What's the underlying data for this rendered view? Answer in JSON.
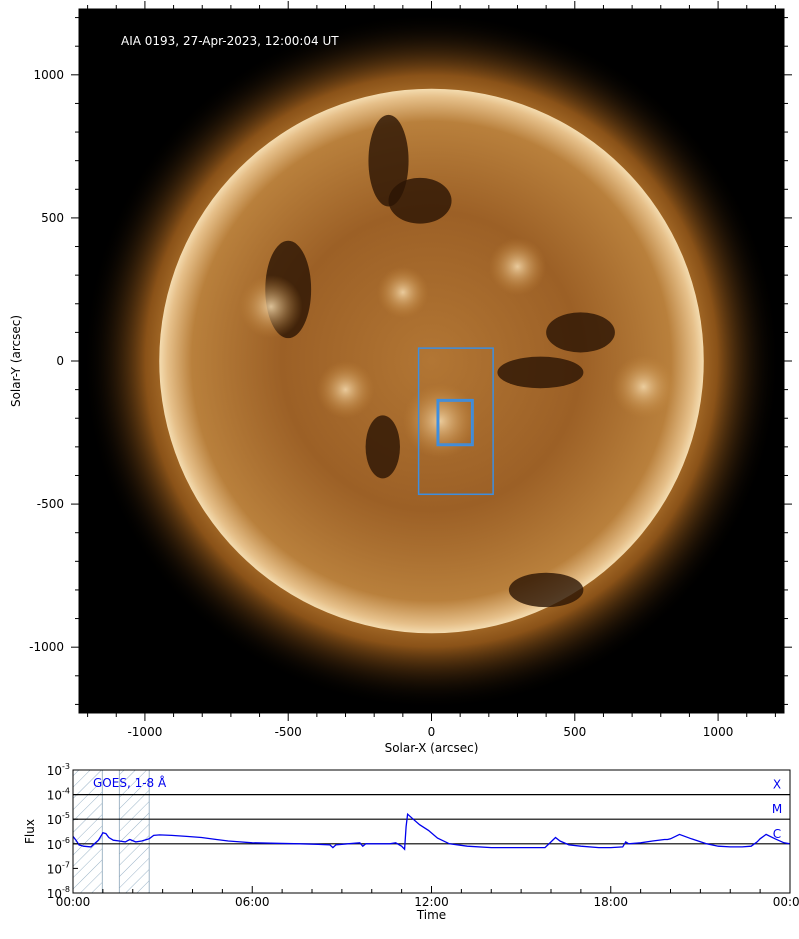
{
  "chart_data": [
    {
      "type": "image",
      "title": "AIA 0193, 27-Apr-2023, 12:00:04 UT",
      "xlabel": "Solar-X (arcsec)",
      "ylabel": "Solar-Y (arcsec)",
      "xlim": [
        -1230,
        1230
      ],
      "ylim": [
        -1230,
        1230
      ],
      "xticks": [
        -1000,
        -500,
        0,
        500,
        1000
      ],
      "yticks": [
        -1000,
        -500,
        0,
        500,
        1000
      ],
      "xtick_labels": [
        "-1000",
        "-500",
        "0",
        "500",
        "1000"
      ],
      "ytick_labels": [
        "-1000",
        "-500",
        "0",
        "500",
        "1000"
      ],
      "disk_radius_arcsec": 950,
      "colormap": "sdoaia193",
      "boxes_arcsec": [
        {
          "x0": -45,
          "x1": 215,
          "y0": -465,
          "y1": 45
        },
        {
          "x0": 20,
          "x1": 145,
          "y0": -295,
          "y1": -135
        },
        {
          "x0": 25,
          "x1": 140,
          "y0": -290,
          "y1": -140
        }
      ],
      "box_color": "#3d8ee0"
    },
    {
      "type": "line",
      "xlabel": "Time",
      "ylabel": "Flux",
      "legend": "GOES, 1-8 Å",
      "xlim_hours": [
        0,
        24
      ],
      "yscale": "log",
      "ylim": [
        1e-08,
        0.001
      ],
      "xticks": [
        "00:00",
        "06:00",
        "12:00",
        "18:00",
        "00:00"
      ],
      "ytick_labels": [
        {
          "base": "10",
          "exp": "-3"
        },
        {
          "base": "10",
          "exp": "-4"
        },
        {
          "base": "10",
          "exp": "-5"
        },
        {
          "base": "10",
          "exp": "-6"
        },
        {
          "base": "10",
          "exp": "-7"
        },
        {
          "base": "10",
          "exp": "-8"
        }
      ],
      "class_lines": [
        {
          "label": "X",
          "value": 0.0001
        },
        {
          "label": "M",
          "value": 1e-05
        },
        {
          "label": "C",
          "value": 1e-06
        }
      ],
      "shaded_intervals_hours": [
        [
          0.0,
          0.98
        ],
        [
          1.55,
          2.55
        ]
      ],
      "series": [
        {
          "color": "#0000ee",
          "x_hours": [
            0.0,
            0.1,
            0.2,
            0.35,
            0.6,
            0.85,
            0.95,
            1.0,
            1.1,
            1.2,
            1.35,
            1.55,
            1.75,
            1.9,
            2.1,
            2.3,
            2.55,
            2.7,
            2.9,
            3.3,
            3.8,
            4.3,
            4.8,
            5.2,
            5.6,
            6.0,
            6.8,
            7.6,
            8.2,
            8.6,
            8.7,
            8.8,
            9.2,
            9.6,
            9.7,
            9.8,
            10.2,
            10.6,
            10.8,
            11.0,
            11.1,
            11.15,
            11.2,
            11.35,
            11.6,
            11.9,
            12.2,
            12.6,
            13.2,
            14.0,
            15.0,
            15.8,
            16.0,
            16.15,
            16.3,
            16.6,
            17.0,
            17.6,
            18.0,
            18.4,
            18.5,
            18.6,
            19.0,
            19.4,
            19.8,
            19.9,
            20.0,
            20.3,
            20.7,
            21.2,
            21.6,
            22.0,
            22.4,
            22.7,
            22.9,
            23.0,
            23.2,
            23.5,
            23.8,
            24.0
          ],
          "y": [
            2e-06,
            1.4e-06,
            9e-07,
            8e-07,
            7.5e-07,
            1.4e-06,
            2.2e-06,
            2.8e-06,
            2.6e-06,
            1.8e-06,
            1.4e-06,
            1.3e-06,
            1.2e-06,
            1.5e-06,
            1.2e-06,
            1.3e-06,
            1.6e-06,
            2.2e-06,
            2.3e-06,
            2.2e-06,
            2e-06,
            1.8e-06,
            1.5e-06,
            1.3e-06,
            1.2e-06,
            1.1e-06,
            1.05e-06,
            1e-06,
            9.5e-07,
            9e-07,
            7e-07,
            9e-07,
            1e-06,
            1.1e-06,
            8e-07,
            1e-06,
            1e-06,
            1e-06,
            1.1e-06,
            8e-07,
            6e-07,
            5e-06,
            1.6e-05,
            1.1e-05,
            6e-06,
            3.5e-06,
            1.7e-06,
            1e-06,
            8e-07,
            7e-07,
            7e-07,
            7e-07,
            1.2e-06,
            1.8e-06,
            1.3e-06,
            9e-07,
            8e-07,
            7e-07,
            7e-07,
            7.5e-07,
            1.2e-06,
            1e-06,
            1.1e-06,
            1.3e-06,
            1.5e-06,
            1.5e-06,
            1.6e-06,
            2.4e-06,
            1.6e-06,
            1e-06,
            8e-07,
            7.5e-07,
            7.5e-07,
            8e-07,
            1.2e-06,
            1.6e-06,
            2.4e-06,
            1.6e-06,
            1.1e-06,
            1e-06
          ]
        }
      ]
    }
  ]
}
